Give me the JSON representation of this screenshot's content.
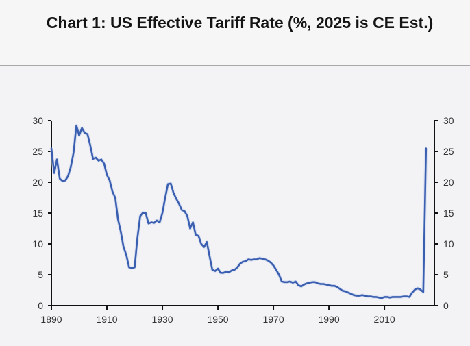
{
  "chart_data": {
    "type": "line",
    "title": "Chart 1: US Effective Tariff Rate (%, 2025 is CE Est.)",
    "xlabel": "",
    "ylabel": "",
    "xlim": [
      1890,
      2028
    ],
    "ylim": [
      0,
      30
    ],
    "x_ticks": [
      1890,
      1910,
      1930,
      1950,
      1970,
      1990,
      2010
    ],
    "y_ticks": [
      0,
      5,
      10,
      15,
      20,
      25,
      30
    ],
    "y_axis_right": true,
    "grid": false,
    "legend": "none",
    "series": [
      {
        "name": "US Effective Tariff Rate",
        "color": "#3b5fb0",
        "x": [
          1890,
          1891,
          1892,
          1893,
          1894,
          1895,
          1896,
          1897,
          1898,
          1899,
          1900,
          1901,
          1902,
          1903,
          1904,
          1905,
          1906,
          1907,
          1908,
          1909,
          1910,
          1911,
          1912,
          1913,
          1914,
          1915,
          1916,
          1917,
          1918,
          1919,
          1920,
          1921,
          1922,
          1923,
          1924,
          1925,
          1926,
          1927,
          1928,
          1929,
          1930,
          1931,
          1932,
          1933,
          1934,
          1935,
          1936,
          1937,
          1938,
          1939,
          1940,
          1941,
          1942,
          1943,
          1944,
          1945,
          1946,
          1947,
          1948,
          1949,
          1950,
          1951,
          1952,
          1953,
          1954,
          1955,
          1956,
          1957,
          1958,
          1959,
          1960,
          1961,
          1962,
          1963,
          1964,
          1965,
          1966,
          1967,
          1968,
          1969,
          1970,
          1971,
          1972,
          1973,
          1974,
          1975,
          1976,
          1977,
          1978,
          1979,
          1980,
          1981,
          1982,
          1983,
          1984,
          1985,
          1986,
          1987,
          1988,
          1989,
          1990,
          1991,
          1992,
          1993,
          1994,
          1995,
          1996,
          1997,
          1998,
          1999,
          2000,
          2001,
          2002,
          2003,
          2004,
          2005,
          2006,
          2007,
          2008,
          2009,
          2010,
          2011,
          2012,
          2013,
          2014,
          2015,
          2016,
          2017,
          2018,
          2019,
          2020,
          2021,
          2022,
          2023,
          2024,
          2025
        ],
        "values": [
          25.5,
          21.5,
          23.7,
          20.6,
          20.2,
          20.3,
          21.0,
          22.5,
          24.8,
          29.2,
          27.6,
          28.8,
          28.0,
          27.8,
          26.0,
          23.8,
          24.0,
          23.5,
          23.7,
          23.0,
          21.2,
          20.3,
          18.5,
          17.5,
          14.0,
          12.0,
          9.5,
          8.2,
          6.2,
          6.1,
          6.2,
          11.0,
          14.5,
          15.1,
          15.0,
          13.3,
          13.5,
          13.4,
          13.8,
          13.5,
          15.0,
          17.5,
          19.7,
          19.8,
          18.3,
          17.3,
          16.5,
          15.5,
          15.3,
          14.5,
          12.5,
          13.5,
          11.5,
          11.3,
          10.0,
          9.5,
          10.3,
          8.0,
          5.8,
          5.6,
          6.0,
          5.3,
          5.3,
          5.5,
          5.4,
          5.7,
          5.8,
          6.2,
          6.8,
          7.1,
          7.2,
          7.5,
          7.4,
          7.5,
          7.5,
          7.7,
          7.6,
          7.5,
          7.3,
          7.0,
          6.5,
          5.8,
          5.0,
          3.9,
          3.8,
          3.8,
          3.9,
          3.7,
          3.9,
          3.3,
          3.1,
          3.4,
          3.6,
          3.7,
          3.8,
          3.8,
          3.6,
          3.5,
          3.5,
          3.4,
          3.3,
          3.2,
          3.2,
          3.0,
          2.7,
          2.4,
          2.3,
          2.1,
          1.9,
          1.7,
          1.6,
          1.6,
          1.7,
          1.6,
          1.5,
          1.5,
          1.4,
          1.4,
          1.3,
          1.2,
          1.4,
          1.4,
          1.3,
          1.4,
          1.4,
          1.4,
          1.4,
          1.5,
          1.5,
          1.4,
          2.1,
          2.6,
          2.8,
          2.6,
          2.2,
          25.5
        ]
      }
    ]
  }
}
